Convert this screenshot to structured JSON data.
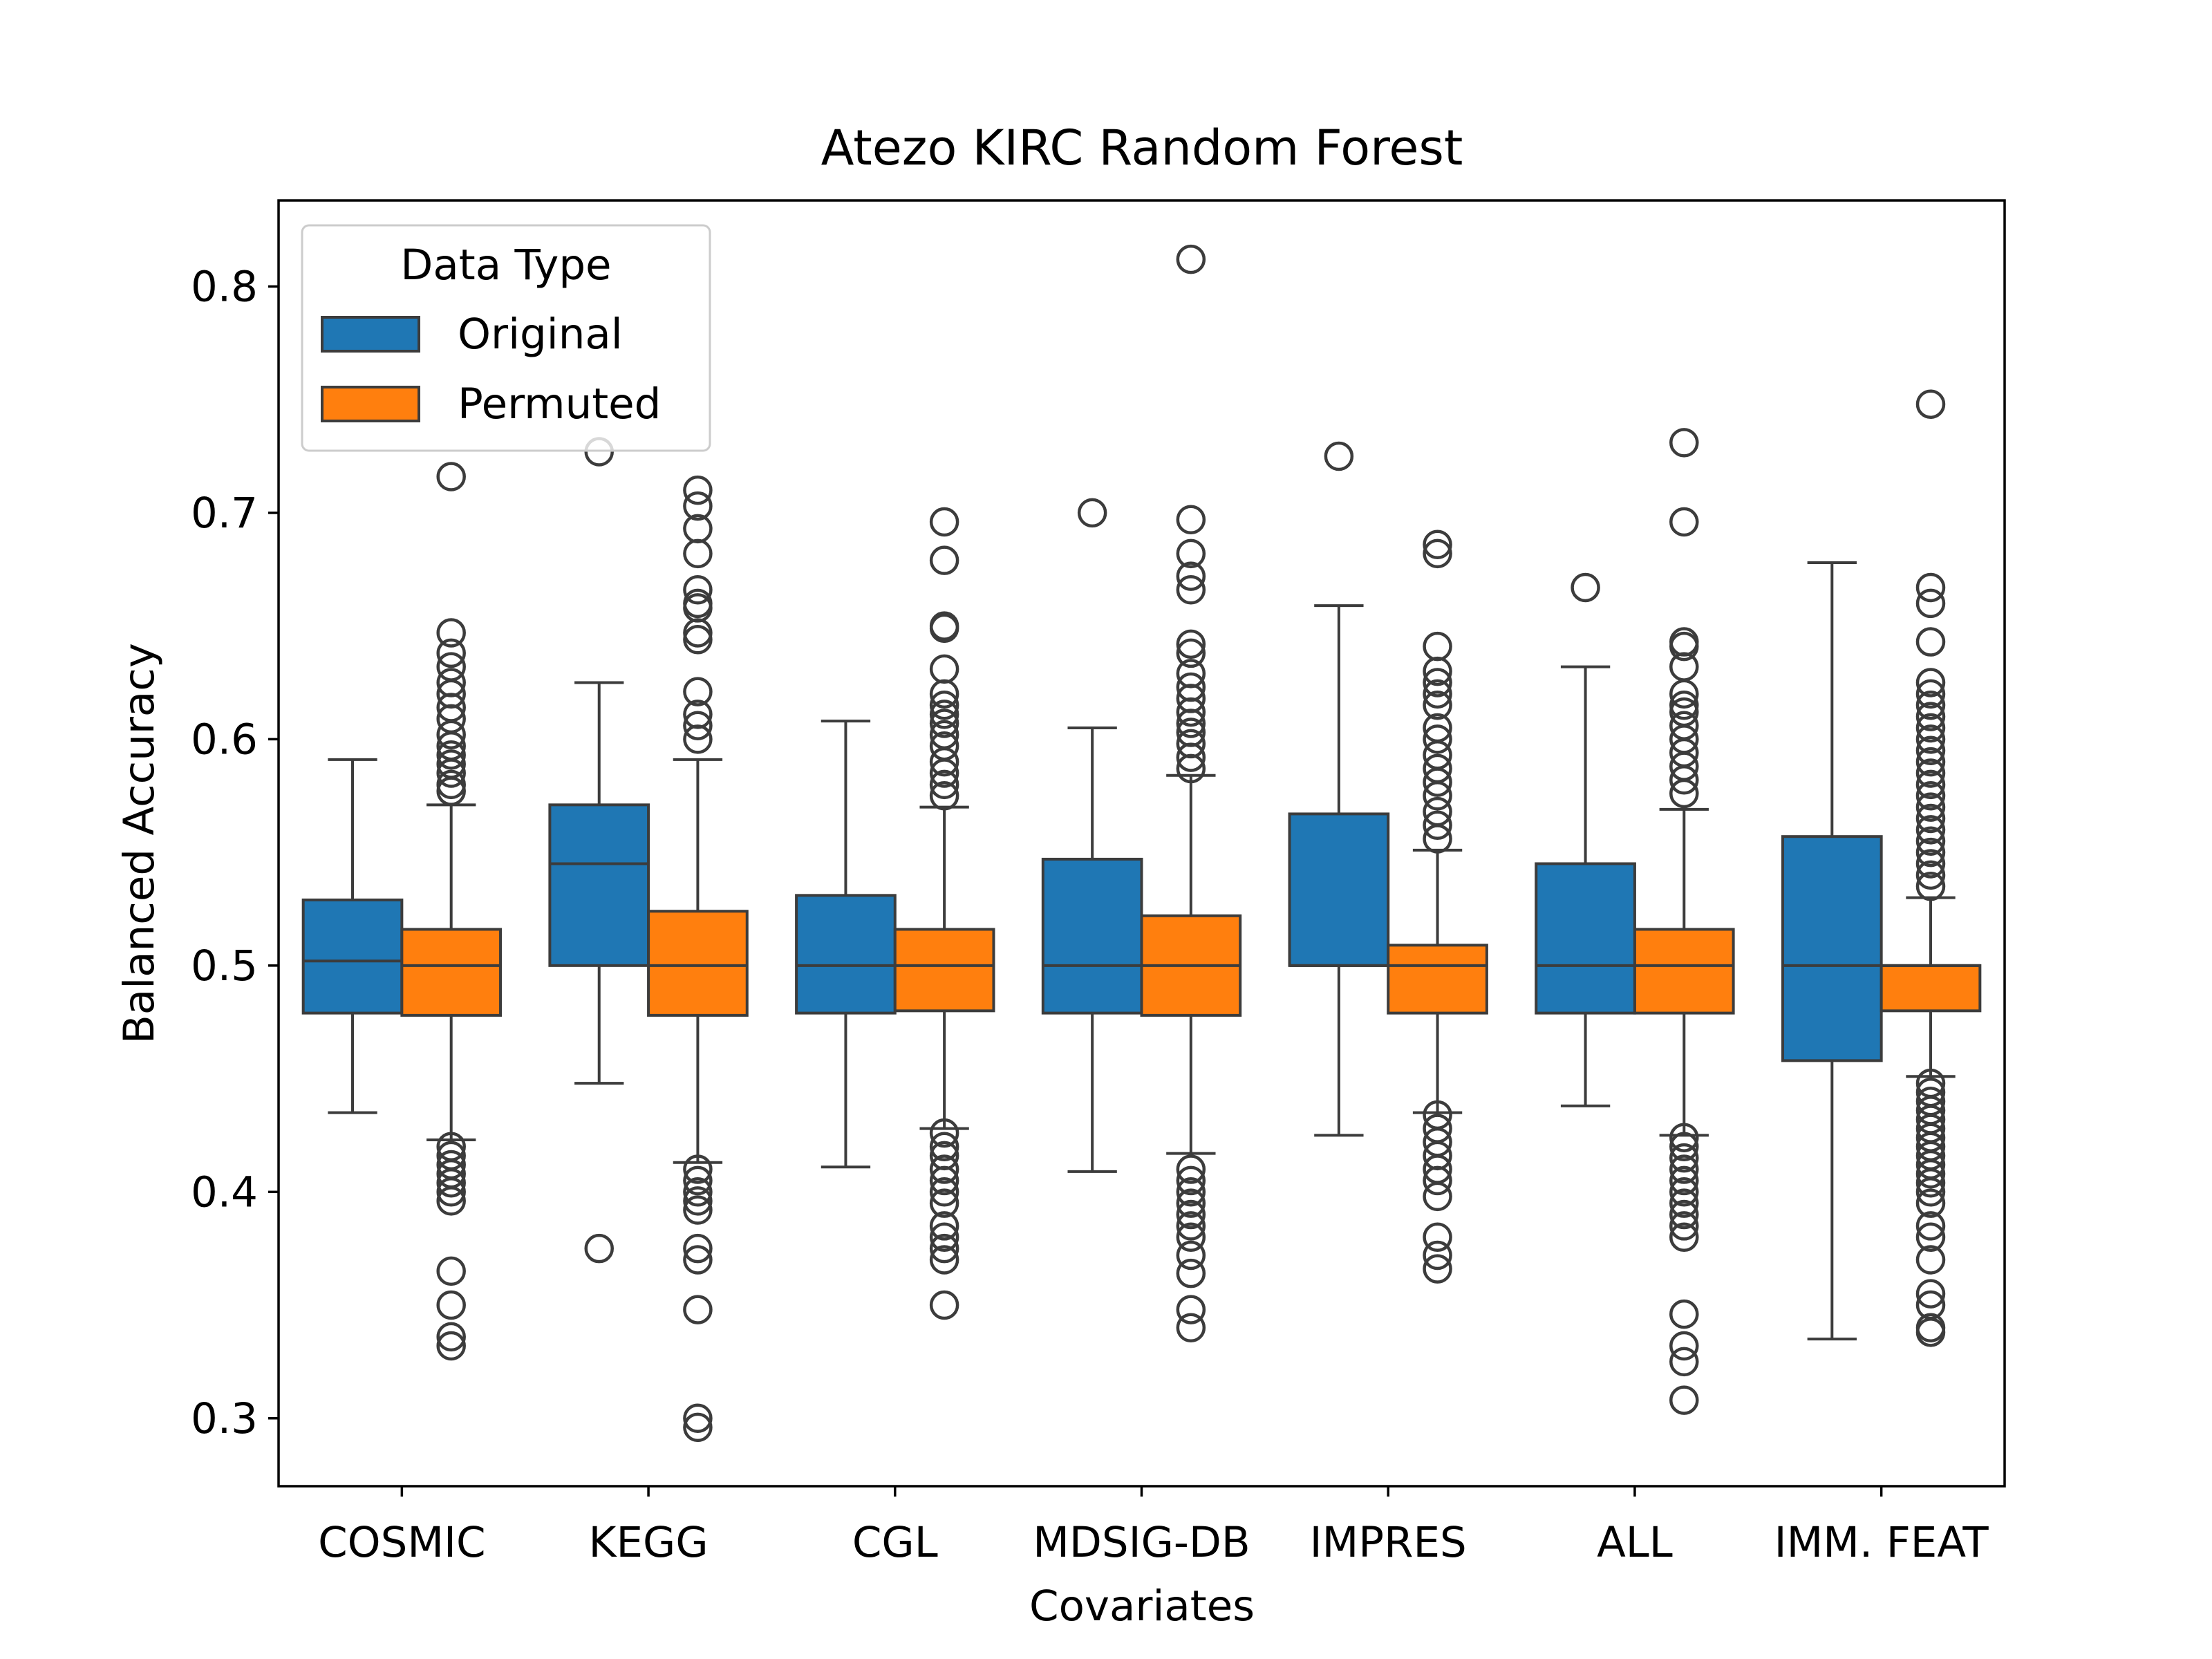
{
  "chart_data": {
    "type": "box",
    "title": "Atezo  KIRC  Random Forest",
    "xlabel": "Covariates",
    "ylabel": "Balanced Accuracy",
    "ylim": [
      0.27,
      0.838
    ],
    "yticks": [
      0.3,
      0.4,
      0.5,
      0.6,
      0.7,
      0.8
    ],
    "ytick_labels": [
      "0.3",
      "0.4",
      "0.5",
      "0.6",
      "0.7",
      "0.8"
    ],
    "grid": false,
    "legend": {
      "title": "Data Type",
      "placement": "top-left",
      "entries": [
        "Original",
        "Permuted"
      ]
    },
    "categories": [
      "COSMIC",
      "KEGG",
      "CGL",
      "MDSIG-DB",
      "IMPRES",
      "ALL",
      "IMM. FEAT"
    ],
    "series": [
      {
        "name": "Original",
        "color": "#1f77b4",
        "boxes": [
          {
            "whislo": 0.435,
            "q1": 0.479,
            "med": 0.502,
            "q3": 0.529,
            "whishi": 0.591,
            "fliers": []
          },
          {
            "whislo": 0.448,
            "q1": 0.5,
            "med": 0.545,
            "q3": 0.571,
            "whishi": 0.625,
            "fliers": [
              0.727,
              0.375
            ]
          },
          {
            "whislo": 0.411,
            "q1": 0.479,
            "med": 0.5,
            "q3": 0.531,
            "whishi": 0.608,
            "fliers": []
          },
          {
            "whislo": 0.409,
            "q1": 0.479,
            "med": 0.5,
            "q3": 0.547,
            "whishi": 0.605,
            "fliers": [
              0.7
            ]
          },
          {
            "whislo": 0.425,
            "q1": 0.5,
            "med": 0.5,
            "q3": 0.567,
            "whishi": 0.659,
            "fliers": [
              0.725
            ]
          },
          {
            "whislo": 0.438,
            "q1": 0.479,
            "med": 0.5,
            "q3": 0.545,
            "whishi": 0.632,
            "fliers": [
              0.667
            ]
          },
          {
            "whislo": 0.335,
            "q1": 0.458,
            "med": 0.5,
            "q3": 0.557,
            "whishi": 0.678,
            "fliers": []
          }
        ]
      },
      {
        "name": "Permuted",
        "color": "#ff7f0e",
        "boxes": [
          {
            "whislo": 0.423,
            "q1": 0.478,
            "med": 0.5,
            "q3": 0.516,
            "whishi": 0.571,
            "fliers": [
              0.716,
              0.647,
              0.638,
              0.632,
              0.625,
              0.62,
              0.614,
              0.609,
              0.602,
              0.597,
              0.593,
              0.589,
              0.585,
              0.58,
              0.577,
              0.42,
              0.416,
              0.412,
              0.408,
              0.404,
              0.4,
              0.396,
              0.365,
              0.35,
              0.336,
              0.332
            ]
          },
          {
            "whislo": 0.413,
            "q1": 0.478,
            "med": 0.5,
            "q3": 0.524,
            "whishi": 0.591,
            "fliers": [
              0.71,
              0.703,
              0.693,
              0.682,
              0.666,
              0.66,
              0.658,
              0.647,
              0.644,
              0.621,
              0.611,
              0.606,
              0.6,
              0.41,
              0.405,
              0.4,
              0.396,
              0.392,
              0.375,
              0.37,
              0.348,
              0.3,
              0.296
            ]
          },
          {
            "whislo": 0.428,
            "q1": 0.48,
            "med": 0.5,
            "q3": 0.516,
            "whishi": 0.57,
            "fliers": [
              0.696,
              0.679,
              0.65,
              0.649,
              0.631,
              0.62,
              0.615,
              0.611,
              0.607,
              0.602,
              0.597,
              0.59,
              0.585,
              0.58,
              0.575,
              0.426,
              0.42,
              0.416,
              0.41,
              0.405,
              0.4,
              0.395,
              0.385,
              0.38,
              0.375,
              0.37,
              0.35
            ]
          },
          {
            "whislo": 0.417,
            "q1": 0.478,
            "med": 0.5,
            "q3": 0.522,
            "whishi": 0.584,
            "fliers": [
              0.812,
              0.697,
              0.682,
              0.672,
              0.666,
              0.642,
              0.638,
              0.629,
              0.623,
              0.618,
              0.612,
              0.607,
              0.603,
              0.598,
              0.592,
              0.587,
              0.41,
              0.405,
              0.4,
              0.395,
              0.39,
              0.385,
              0.38,
              0.372,
              0.364,
              0.348,
              0.34
            ]
          },
          {
            "whislo": 0.435,
            "q1": 0.479,
            "med": 0.5,
            "q3": 0.509,
            "whishi": 0.551,
            "fliers": [
              0.686,
              0.682,
              0.641,
              0.63,
              0.625,
              0.62,
              0.615,
              0.605,
              0.6,
              0.593,
              0.587,
              0.581,
              0.575,
              0.568,
              0.562,
              0.556,
              0.434,
              0.428,
              0.422,
              0.416,
              0.41,
              0.405,
              0.398,
              0.38,
              0.372,
              0.366
            ]
          },
          {
            "whislo": 0.425,
            "q1": 0.479,
            "med": 0.5,
            "q3": 0.516,
            "whishi": 0.569,
            "fliers": [
              0.731,
              0.696,
              0.643,
              0.641,
              0.632,
              0.62,
              0.615,
              0.612,
              0.606,
              0.6,
              0.594,
              0.588,
              0.582,
              0.576,
              0.424,
              0.42,
              0.415,
              0.41,
              0.405,
              0.4,
              0.395,
              0.39,
              0.385,
              0.38,
              0.346,
              0.332,
              0.325,
              0.308
            ]
          },
          {
            "whislo": 0.451,
            "q1": 0.48,
            "med": 0.5,
            "q3": 0.5,
            "whishi": 0.53,
            "fliers": [
              0.748,
              0.667,
              0.66,
              0.643,
              0.625,
              0.62,
              0.615,
              0.61,
              0.605,
              0.6,
              0.595,
              0.59,
              0.585,
              0.58,
              0.575,
              0.57,
              0.565,
              0.56,
              0.555,
              0.55,
              0.545,
              0.54,
              0.535,
              0.448,
              0.444,
              0.44,
              0.436,
              0.432,
              0.428,
              0.424,
              0.42,
              0.416,
              0.412,
              0.408,
              0.404,
              0.4,
              0.395,
              0.385,
              0.38,
              0.37,
              0.355,
              0.35,
              0.34,
              0.338
            ]
          }
        ]
      }
    ]
  }
}
